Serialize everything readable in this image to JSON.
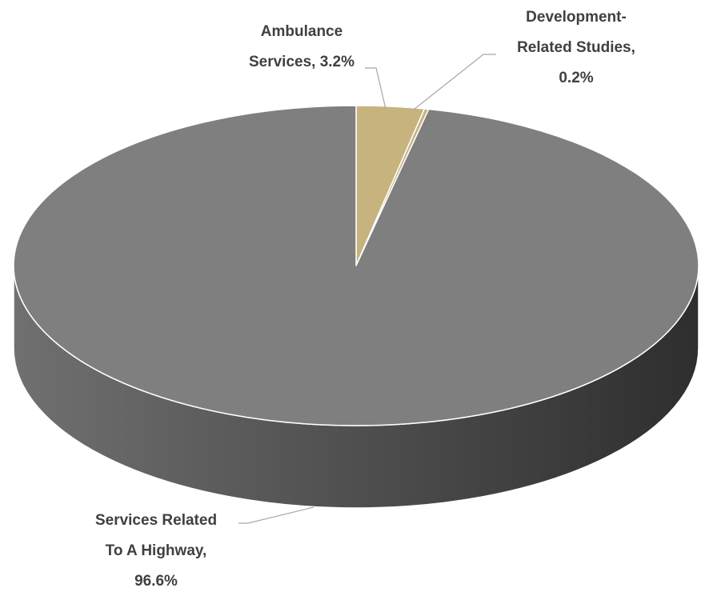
{
  "chart_data": {
    "type": "pie",
    "style": "3d",
    "series": [
      {
        "slices": [
          {
            "label_lines": [
              "Ambulance",
              "Services, 3.2%"
            ],
            "category": "Ambulance Services",
            "value": 3.2,
            "color": "#c7b37e"
          },
          {
            "label_lines": [
              "Development-",
              "Related Studies,",
              "0.2%"
            ],
            "category": "Development-Related Studies",
            "value": 0.2,
            "color": "#c7b37e"
          },
          {
            "label_lines": [
              "Services Related",
              "To A Highway,",
              "96.6%"
            ],
            "category": "Services Related To A Highway",
            "value": 96.6,
            "color": "#7f7f7f"
          }
        ]
      }
    ],
    "side_colors": {
      "light": "#707070",
      "dark": "#2e2e2e"
    },
    "outline_color": "#ffffff",
    "legend": "none"
  }
}
